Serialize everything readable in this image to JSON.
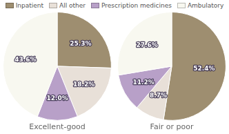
{
  "chart_data": [
    {
      "type": "pie",
      "title": "Excellent-good",
      "categories": [
        "Inpatient",
        "All other",
        "Prescription medicines",
        "Ambulatory"
      ],
      "values": [
        25.3,
        18.2,
        12.0,
        43.6
      ],
      "value_labels": [
        "25.3%",
        "18.2%",
        "12.0%",
        "43.6%"
      ],
      "colors": [
        "#9E8E70",
        "#E8E0D8",
        "#B8A0C8",
        "#F8F8F0"
      ],
      "data_labels": true,
      "legend": "top"
    },
    {
      "type": "pie",
      "title": "Fair or poor",
      "categories": [
        "Inpatient",
        "All other",
        "Prescription medicines",
        "Ambulatory"
      ],
      "values": [
        52.4,
        8.7,
        11.2,
        27.6
      ],
      "value_labels": [
        "52.4%",
        "8.7%",
        "11.2%",
        "27.6%"
      ],
      "colors": [
        "#9E8E70",
        "#E8E0D8",
        "#B8A0C8",
        "#F8F8F0"
      ],
      "data_labels": true
    }
  ]
}
